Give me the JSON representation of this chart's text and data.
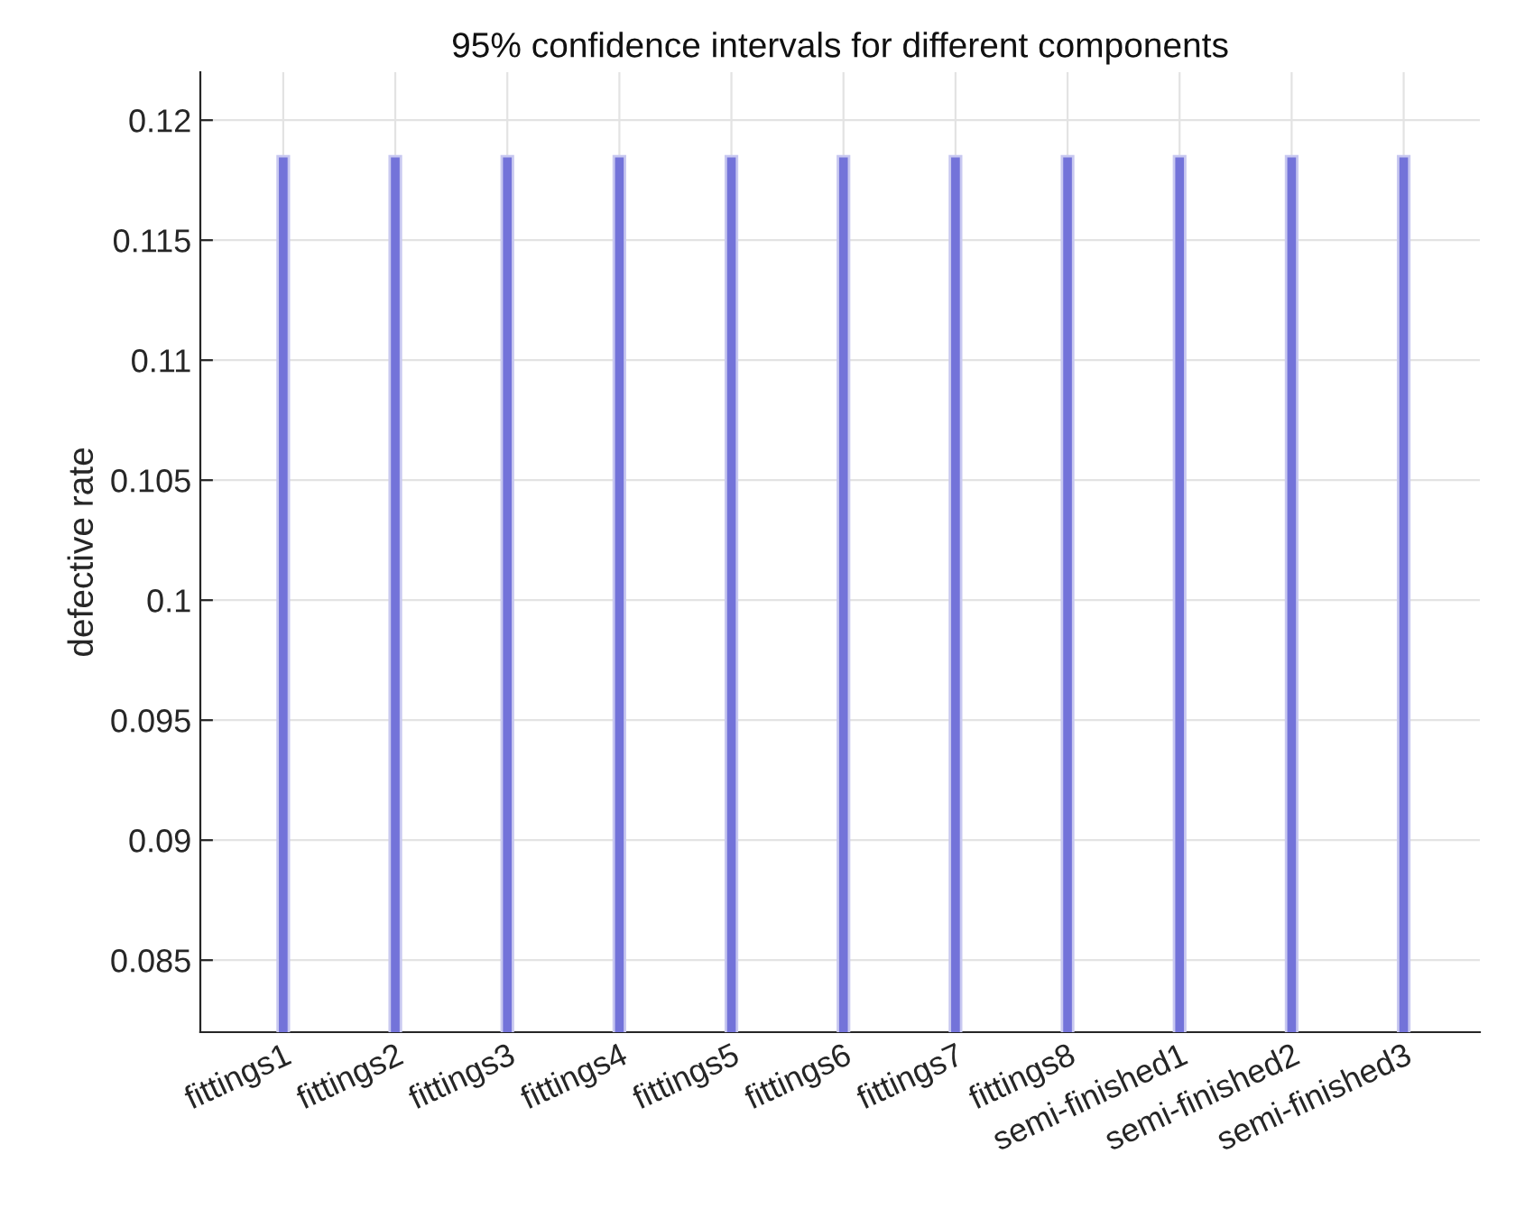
{
  "chart_data": {
    "type": "bar",
    "title": "95% confidence intervals for different components",
    "ylabel": "defective rate",
    "categories": [
      "fittings1",
      "fittings2",
      "fittings3",
      "fittings4",
      "fittings5",
      "fittings6",
      "fittings7",
      "fittings8",
      "semi-finished1",
      "semi-finished2",
      "semi-finished3"
    ],
    "values": [
      0.1185,
      0.1185,
      0.1185,
      0.1185,
      0.1185,
      0.1185,
      0.1185,
      0.1185,
      0.1185,
      0.1185,
      0.1185
    ],
    "color": "#7373d9",
    "ylim": [
      0.082,
      0.122
    ],
    "yticks": [
      0.085,
      0.09,
      0.095,
      0.1,
      0.105,
      0.11,
      0.115,
      0.12
    ],
    "grid": true
  }
}
